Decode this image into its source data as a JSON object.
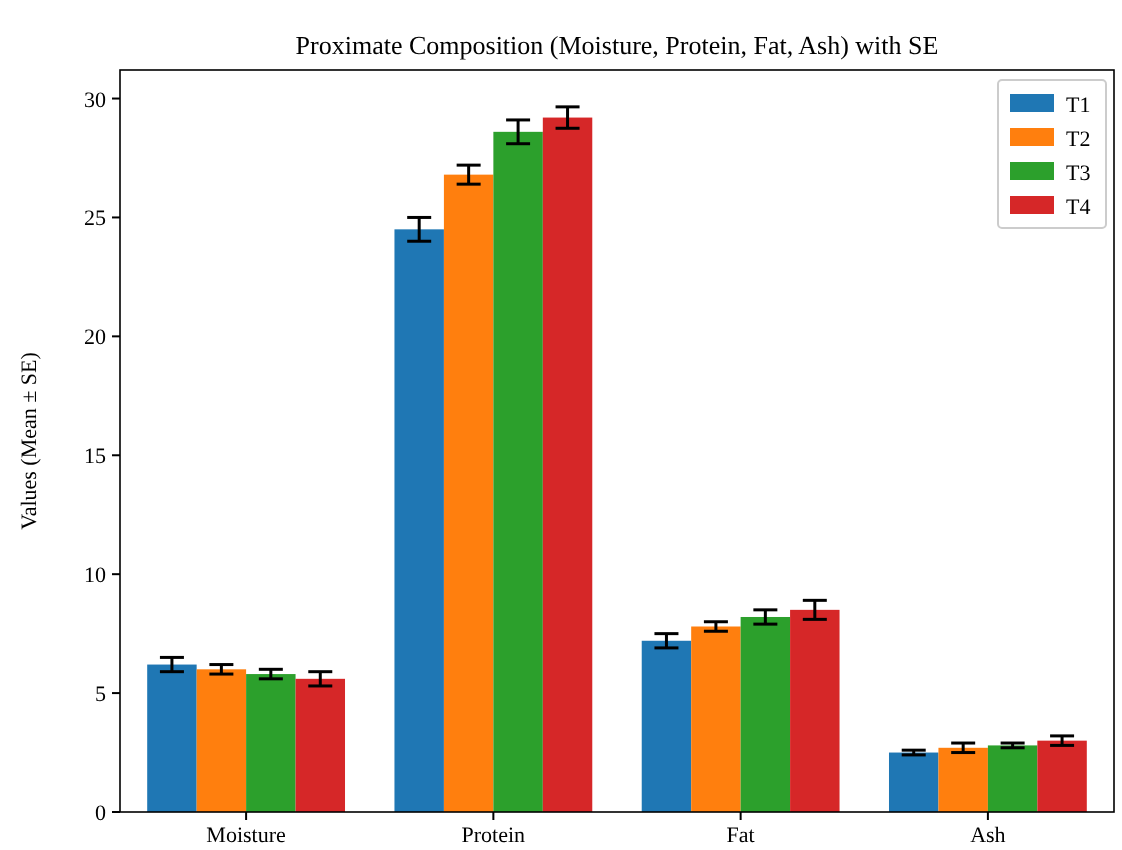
{
  "chart_data": {
    "type": "bar",
    "title": "Proximate Composition (Moisture, Protein, Fat, Ash) with SE",
    "ylabel": "Values (Mean ± SE)",
    "categories": [
      "Moisture",
      "Protein",
      "Fat",
      "Ash"
    ],
    "series": [
      {
        "name": "T1",
        "color": "#1f77b4",
        "values": [
          6.2,
          24.5,
          7.2,
          2.5
        ],
        "errors": [
          0.3,
          0.5,
          0.3,
          0.1
        ]
      },
      {
        "name": "T2",
        "color": "#ff7f0e",
        "values": [
          6.0,
          26.8,
          7.8,
          2.7
        ],
        "errors": [
          0.2,
          0.4,
          0.2,
          0.2
        ]
      },
      {
        "name": "T3",
        "color": "#2ca02c",
        "values": [
          5.8,
          28.6,
          8.2,
          2.8
        ],
        "errors": [
          0.2,
          0.5,
          0.3,
          0.1
        ]
      },
      {
        "name": "T4",
        "color": "#d62728",
        "values": [
          5.6,
          29.2,
          8.5,
          3.0
        ],
        "errors": [
          0.3,
          0.45,
          0.4,
          0.2
        ]
      }
    ],
    "ylim": [
      0,
      31.2
    ],
    "yticks": [
      0,
      5,
      10,
      15,
      20,
      25,
      30
    ],
    "legend": "top right"
  }
}
